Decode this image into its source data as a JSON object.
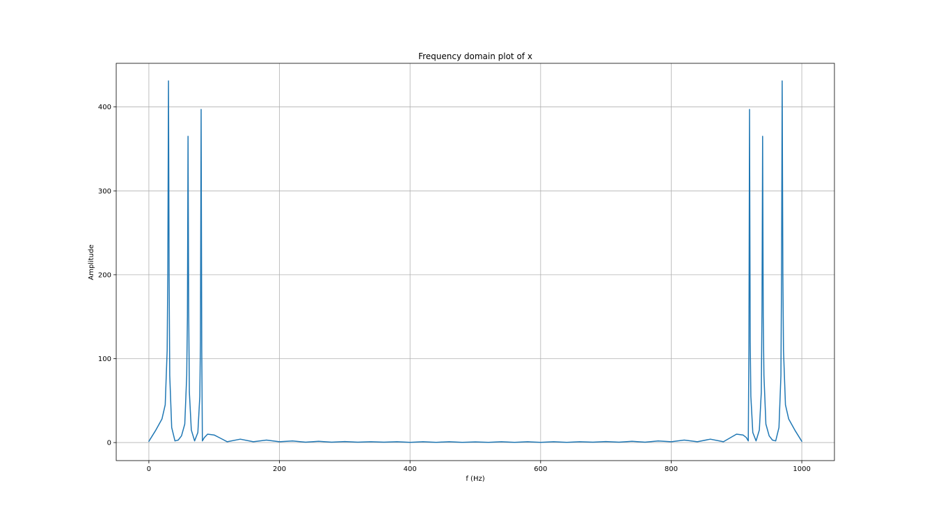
{
  "chart_data": {
    "type": "line",
    "title": "Frequency domain plot of x",
    "xlabel": "f (Hz)",
    "ylabel": "Amplitude",
    "xlim": [
      -50,
      1050
    ],
    "ylim": [
      -21.5,
      452
    ],
    "xticks": [
      0,
      200,
      400,
      600,
      800,
      1000
    ],
    "yticks": [
      0,
      100,
      200,
      300,
      400
    ],
    "grid": true,
    "colors": {
      "series": "#1f77b4"
    },
    "series": [
      {
        "x": [
          0,
          10,
          20,
          25,
          28,
          29,
          30,
          31,
          32,
          35,
          40,
          45,
          50,
          55,
          58,
          59,
          60,
          61,
          62,
          65,
          70,
          75,
          78,
          79,
          80,
          81,
          82,
          85,
          90,
          100,
          110,
          120,
          140,
          160,
          180,
          200,
          220,
          240,
          260,
          280,
          300,
          320,
          340,
          360,
          380,
          400,
          420,
          440,
          460,
          480,
          500,
          520,
          540,
          560,
          580,
          600,
          620,
          640,
          660,
          680,
          700,
          720,
          740,
          760,
          780,
          800,
          820,
          840,
          860,
          880,
          900,
          910,
          915,
          918,
          919,
          920,
          921,
          922,
          925,
          930,
          935,
          938,
          939,
          940,
          941,
          942,
          945,
          950,
          955,
          960,
          965,
          968,
          969,
          970,
          971,
          972,
          975,
          980,
          990,
          1000
        ],
        "y": [
          1.5,
          14,
          28,
          45,
          110,
          200,
          431,
          200,
          80,
          18,
          2,
          3,
          8,
          22,
          80,
          150,
          365,
          160,
          60,
          15,
          2,
          12,
          55,
          120,
          397,
          110,
          2,
          6,
          10,
          9,
          5,
          1,
          4,
          1,
          3,
          1,
          2,
          0.5,
          1.5,
          0.5,
          1.2,
          0.5,
          1,
          0.5,
          1,
          0.3,
          1,
          0.3,
          1,
          0.3,
          0.8,
          0.3,
          1,
          0.3,
          1,
          0.3,
          1,
          0.3,
          1,
          0.5,
          1.2,
          0.5,
          1.5,
          0.5,
          2,
          1,
          3,
          1,
          4,
          1,
          10,
          9,
          6,
          2,
          110,
          397,
          120,
          55,
          12,
          2,
          15,
          60,
          160,
          365,
          150,
          80,
          22,
          8,
          3,
          2,
          18,
          80,
          200,
          431,
          200,
          110,
          45,
          28,
          14,
          1.5
        ]
      }
    ]
  }
}
